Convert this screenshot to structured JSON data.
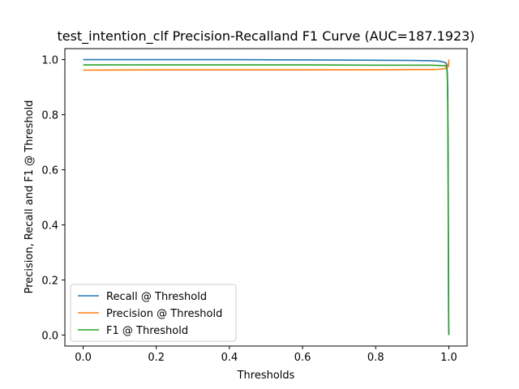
{
  "chart_data": {
    "type": "line",
    "title": "test_intention_clf Precision-Recalland F1  Curve (AUC=187.1923)",
    "xlabel": "Thresholds",
    "ylabel": "Precision, Recall and F1 @ Threshold",
    "xlim": [
      -0.05,
      1.05
    ],
    "ylim": [
      -0.04,
      1.04
    ],
    "xticks": [
      0.0,
      0.2,
      0.4,
      0.6,
      0.8,
      1.0
    ],
    "xtick_labels": [
      "0.0",
      "0.2",
      "0.4",
      "0.6",
      "0.8",
      "1.0"
    ],
    "yticks": [
      0.0,
      0.2,
      0.4,
      0.6,
      0.8,
      1.0
    ],
    "ytick_labels": [
      "0.0",
      "0.2",
      "0.4",
      "0.6",
      "0.8",
      "1.0"
    ],
    "grid": false,
    "legend_position": "lower-left",
    "series": [
      {
        "name": "Recall @ Threshold",
        "color": "#1f77b4",
        "x": [
          0.0,
          0.2,
          0.4,
          0.6,
          0.8,
          0.9,
          0.95,
          0.97,
          0.98,
          0.99,
          0.993,
          0.995,
          0.996,
          0.997,
          0.998,
          0.9985,
          0.999,
          0.9995,
          1.0
        ],
        "y": [
          1.0,
          1.0,
          1.0,
          0.999,
          0.998,
          0.997,
          0.996,
          0.995,
          0.993,
          0.99,
          0.985,
          0.97,
          0.95,
          0.9,
          0.7,
          0.5,
          0.3,
          0.1,
          0.0
        ]
      },
      {
        "name": "Precision @ Threshold",
        "color": "#ff7f0e",
        "x": [
          0.0,
          0.2,
          0.4,
          0.6,
          0.8,
          0.9,
          0.95,
          0.97,
          0.98,
          0.99,
          0.995,
          0.997,
          0.998,
          0.999,
          1.0
        ],
        "y": [
          0.962,
          0.963,
          0.963,
          0.963,
          0.963,
          0.964,
          0.964,
          0.965,
          0.966,
          0.968,
          0.97,
          0.975,
          0.985,
          0.975,
          1.0
        ]
      },
      {
        "name": "F1 @ Threshold",
        "color": "#2ca02c",
        "x": [
          0.0,
          0.2,
          0.4,
          0.6,
          0.8,
          0.9,
          0.95,
          0.97,
          0.98,
          0.99,
          0.993,
          0.995,
          0.996,
          0.997,
          0.998,
          0.9985,
          0.999,
          0.9995,
          1.0
        ],
        "y": [
          0.981,
          0.981,
          0.981,
          0.981,
          0.98,
          0.98,
          0.98,
          0.979,
          0.978,
          0.978,
          0.975,
          0.96,
          0.93,
          0.85,
          0.6,
          0.4,
          0.2,
          0.05,
          0.0
        ]
      }
    ]
  }
}
